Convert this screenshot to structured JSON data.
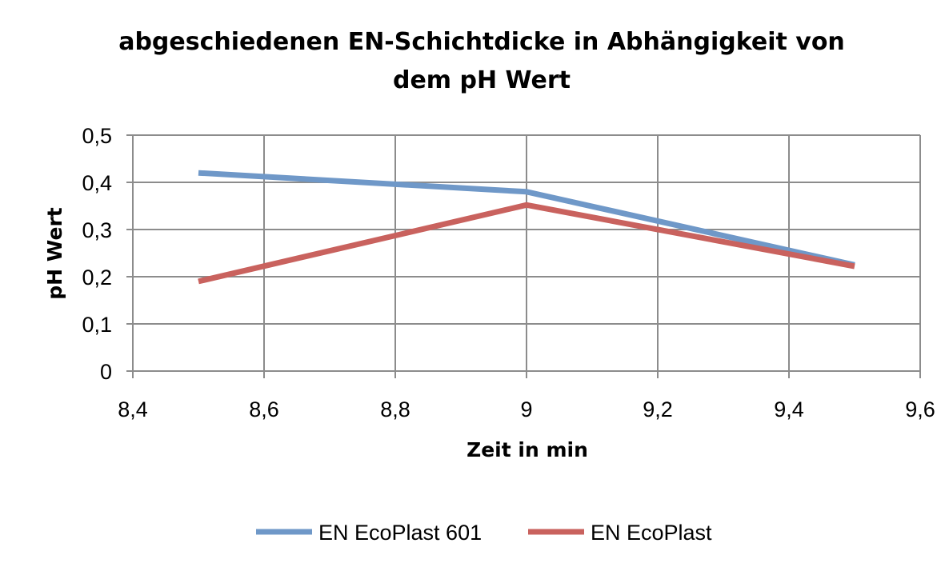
{
  "chart_data": {
    "type": "line",
    "title_lines": [
      "abgeschiedenen EN-Schichtdicke in Abhängigkeit von",
      "dem pH Wert"
    ],
    "xlabel": "Zeit in min",
    "ylabel": "pH Wert",
    "xlim": [
      8.4,
      9.6
    ],
    "ylim": [
      0,
      0.5
    ],
    "x_ticks": [
      8.4,
      8.6,
      8.8,
      9.0,
      9.2,
      9.4,
      9.6
    ],
    "x_tick_labels": [
      "8,4",
      "8,6",
      "8,8",
      "9",
      "9,2",
      "9,4",
      "9,6"
    ],
    "y_ticks": [
      0,
      0.1,
      0.2,
      0.3,
      0.4,
      0.5
    ],
    "y_tick_labels": [
      "0",
      "0,1",
      "0,2",
      "0,3",
      "0,4",
      "0,5"
    ],
    "grid": true,
    "legend_position": "bottom",
    "series": [
      {
        "name": "EN EcoPlast 601",
        "color": "#6f98c8",
        "x": [
          8.5,
          9.0,
          9.5
        ],
        "y": [
          0.42,
          0.38,
          0.225
        ]
      },
      {
        "name": "EN EcoPlast",
        "color": "#c9625e",
        "x": [
          8.5,
          9.0,
          9.5
        ],
        "y": [
          0.19,
          0.352,
          0.222
        ]
      }
    ]
  }
}
